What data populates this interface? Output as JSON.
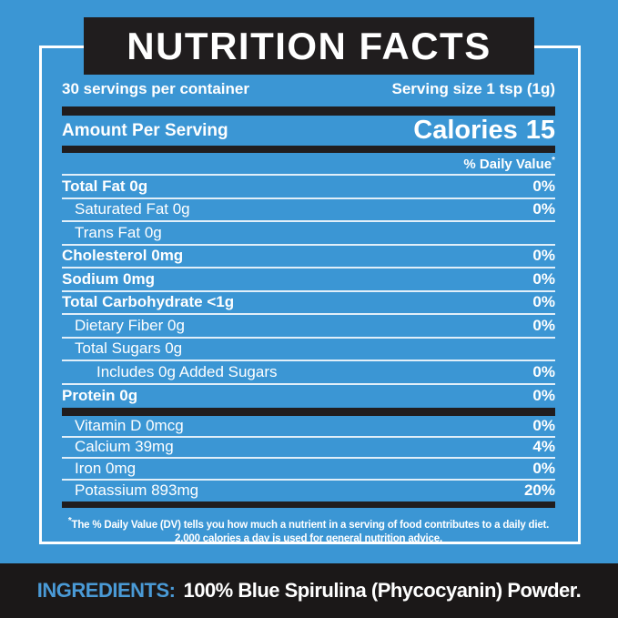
{
  "colors": {
    "background_blue": "#3B96D4",
    "panel_black": "#201D1E",
    "strip_black": "#1B1818",
    "ingredients_accent_blue": "#4A9AD6",
    "text_white": "#FFFFFF"
  },
  "header": {
    "title": "NUTRITION FACTS"
  },
  "serving_info": {
    "servings_per_container": "30 servings per container",
    "serving_size": "Serving size 1 tsp (1g)"
  },
  "amount": {
    "label": "Amount Per Serving",
    "calories_label": "Calories",
    "calories_value": "15"
  },
  "daily_value": {
    "label": "% Daily Value",
    "symbol": "*"
  },
  "nutrients": {
    "rows": [
      {
        "label": "Total Fat 0g",
        "value": "0%"
      },
      {
        "label": "Saturated Fat 0g",
        "value": "0%"
      },
      {
        "label": "Trans Fat 0g",
        "value": ""
      },
      {
        "label": "Cholesterol 0mg",
        "value": "0%"
      },
      {
        "label": "Sodium 0mg",
        "value": "0%"
      },
      {
        "label": "Total Carbohydrate <1g",
        "value": "0%"
      },
      {
        "label": "Dietary Fiber 0g",
        "value": "0%"
      },
      {
        "label": "Total Sugars 0g",
        "value": ""
      },
      {
        "label": "Includes 0g Added Sugars",
        "value": "0%"
      },
      {
        "label": "Protein 0g",
        "value": "0%"
      }
    ]
  },
  "vitamins": {
    "rows": [
      {
        "label": "Vitamin D 0mcg",
        "value": "0%"
      },
      {
        "label": "Calcium 39mg",
        "value": "4%"
      },
      {
        "label": "Iron 0mg",
        "value": "0%"
      },
      {
        "label": "Potassium 893mg",
        "value": "20%"
      }
    ]
  },
  "footnote": {
    "symbol": "*",
    "text": "The % Daily Value (DV) tells you how much a nutrient in a serving of food contributes to a daily diet. 2,000 calories a day is used for general nutrition advice."
  },
  "ingredients": {
    "label": "INGREDIENTS:",
    "text": "100% Blue Spirulina (Phycocyanin) Powder."
  }
}
